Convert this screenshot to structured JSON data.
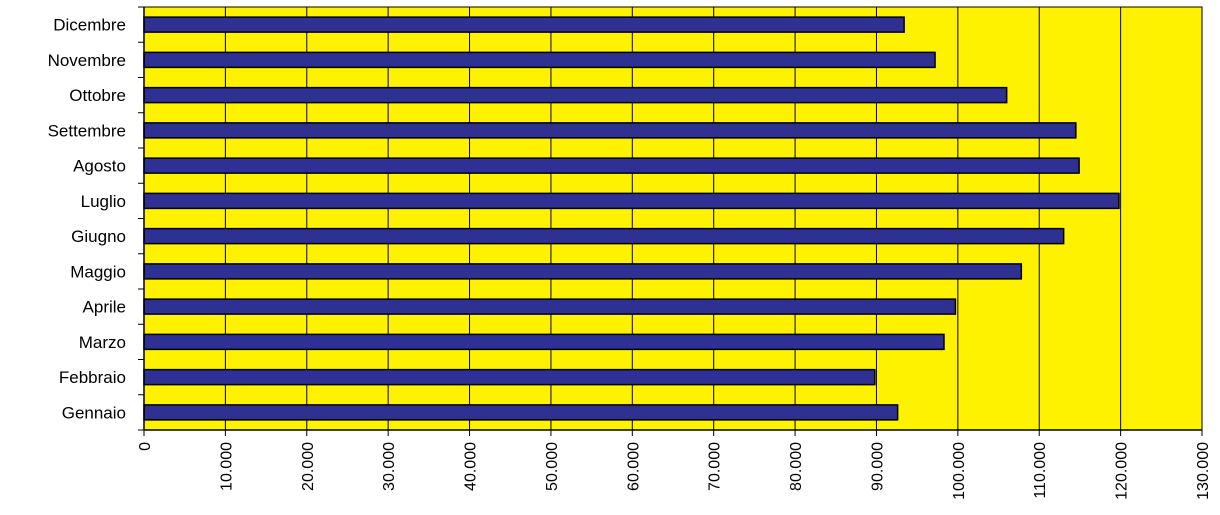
{
  "chart_data": {
    "type": "bar",
    "orientation": "horizontal",
    "categories": [
      "Gennaio",
      "Febbraio",
      "Marzo",
      "Aprile",
      "Maggio",
      "Giugno",
      "Luglio",
      "Agosto",
      "Settembre",
      "Ottobre",
      "Novembre",
      "Dicembre"
    ],
    "values": [
      92600,
      89800,
      98300,
      99700,
      107800,
      113000,
      119800,
      114900,
      114500,
      106000,
      97200,
      93400
    ],
    "xlim": [
      0,
      130000
    ],
    "xticks": [
      0,
      10000,
      20000,
      30000,
      40000,
      50000,
      60000,
      70000,
      80000,
      90000,
      100000,
      110000,
      120000,
      130000
    ],
    "xtick_labels": [
      "0",
      "10.000",
      "20.000",
      "30.000",
      "40.000",
      "50.000",
      "60.000",
      "70.000",
      "80.000",
      "90.000",
      "100.000",
      "110.000",
      "120.000",
      "130.000"
    ],
    "grid": "vertical",
    "legend": "none",
    "colors": {
      "plot_background": "#FFF200",
      "bar_fill": "#2E3192",
      "bar_edge": "#000000",
      "grid": "#000000"
    }
  }
}
